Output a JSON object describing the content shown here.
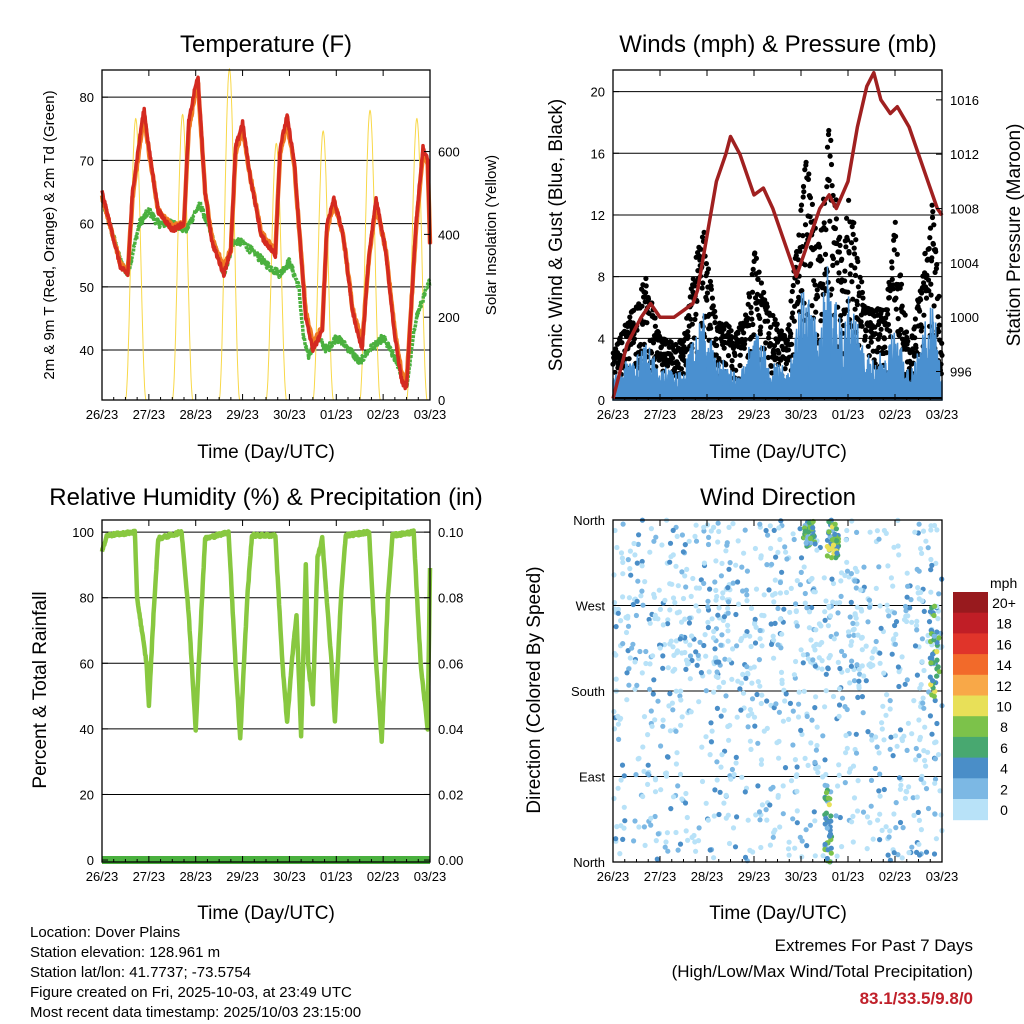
{
  "x_ticks": [
    "26/23",
    "27/23",
    "28/23",
    "29/23",
    "30/23",
    "01/23",
    "02/23",
    "03/23"
  ],
  "x_label": "Time (Day/UTC)",
  "chart_data": [
    {
      "id": "temperature",
      "type": "line",
      "title": "Temperature (F)",
      "ylabel": "2m & 9m T (Red, Orange) & 2m Td (Green)",
      "ylabel_right": "Solar Insolation (Yellow)",
      "xlim": [
        0,
        7
      ],
      "ylim": [
        32.1,
        84.3
      ],
      "ylim_right": [
        0,
        797
      ],
      "y_ticks": [
        40,
        50,
        60,
        70,
        80
      ],
      "y_ticks_right": [
        0,
        200,
        400,
        600
      ],
      "grid": true,
      "series": [
        {
          "name": "2m T",
          "color": "#d42a20",
          "points": [
            [
              0,
              65
            ],
            [
              0.4,
              53
            ],
            [
              0.55,
              52
            ],
            [
              0.65,
              65
            ],
            [
              0.85,
              76
            ],
            [
              0.9,
              78
            ],
            [
              1.0,
              72
            ],
            [
              1.2,
              62
            ],
            [
              1.5,
              59
            ],
            [
              1.75,
              60
            ],
            [
              1.85,
              76
            ],
            [
              2.0,
              82
            ],
            [
              2.05,
              83
            ],
            [
              2.2,
              65
            ],
            [
              2.35,
              57
            ],
            [
              2.6,
              52
            ],
            [
              2.75,
              56
            ],
            [
              2.85,
              72
            ],
            [
              3.0,
              76
            ],
            [
              3.15,
              68
            ],
            [
              3.4,
              58
            ],
            [
              3.7,
              55
            ],
            [
              3.8,
              72
            ],
            [
              3.95,
              77
            ],
            [
              4.1,
              70
            ],
            [
              4.25,
              55
            ],
            [
              4.35,
              45
            ],
            [
              4.5,
              40
            ],
            [
              4.7,
              43
            ],
            [
              4.8,
              60
            ],
            [
              4.95,
              64
            ],
            [
              5.15,
              58
            ],
            [
              5.35,
              46
            ],
            [
              5.55,
              40
            ],
            [
              5.7,
              55
            ],
            [
              5.85,
              64
            ],
            [
              6.05,
              56
            ],
            [
              6.25,
              42
            ],
            [
              6.4,
              35
            ],
            [
              6.5,
              34
            ],
            [
              6.7,
              60
            ],
            [
              6.85,
              72
            ],
            [
              6.95,
              70
            ],
            [
              7.0,
              57
            ]
          ]
        },
        {
          "name": "9m T",
          "color": "#f07a22",
          "points": [
            [
              0,
              64.5
            ],
            [
              0.4,
              53.5
            ],
            [
              0.55,
              52.5
            ],
            [
              0.65,
              64
            ],
            [
              0.85,
              75
            ],
            [
              0.9,
              77
            ],
            [
              1.0,
              71.5
            ],
            [
              1.2,
              62
            ],
            [
              1.5,
              59.5
            ],
            [
              1.75,
              60
            ],
            [
              1.85,
              75
            ],
            [
              2.0,
              81
            ],
            [
              2.05,
              82
            ],
            [
              2.2,
              65
            ],
            [
              2.35,
              57.5
            ],
            [
              2.6,
              53
            ],
            [
              2.75,
              56
            ],
            [
              2.85,
              71
            ],
            [
              3.0,
              75
            ],
            [
              3.15,
              68
            ],
            [
              3.4,
              58.5
            ],
            [
              3.7,
              55.5
            ],
            [
              3.8,
              71
            ],
            [
              3.95,
              76
            ],
            [
              4.1,
              69.5
            ],
            [
              4.25,
              55
            ],
            [
              4.35,
              46
            ],
            [
              4.5,
              41
            ],
            [
              4.7,
              43.5
            ],
            [
              4.8,
              59
            ],
            [
              4.95,
              63.5
            ],
            [
              5.15,
              58
            ],
            [
              5.35,
              46.5
            ],
            [
              5.55,
              41
            ],
            [
              5.7,
              55
            ],
            [
              5.85,
              63
            ],
            [
              6.05,
              56
            ],
            [
              6.25,
              43
            ],
            [
              6.4,
              36
            ],
            [
              6.5,
              35
            ],
            [
              6.7,
              59
            ],
            [
              6.85,
              71
            ],
            [
              6.95,
              69.5
            ],
            [
              7.0,
              57
            ]
          ]
        },
        {
          "name": "2m Td",
          "color": "#4ab03e",
          "points": [
            [
              0,
              64
            ],
            [
              0.4,
              54
            ],
            [
              0.55,
              52
            ],
            [
              0.8,
              60
            ],
            [
              1.0,
              62
            ],
            [
              1.2,
              60
            ],
            [
              1.5,
              60
            ],
            [
              1.8,
              59
            ],
            [
              2.0,
              62
            ],
            [
              2.1,
              63
            ],
            [
              2.3,
              59
            ],
            [
              2.6,
              52
            ],
            [
              2.8,
              57
            ],
            [
              3.0,
              57
            ],
            [
              3.3,
              55
            ],
            [
              3.6,
              53
            ],
            [
              3.8,
              52
            ],
            [
              4.0,
              54
            ],
            [
              4.2,
              50
            ],
            [
              4.3,
              42
            ],
            [
              4.4,
              39
            ],
            [
              4.6,
              42
            ],
            [
              4.8,
              40
            ],
            [
              5.0,
              42
            ],
            [
              5.3,
              40
            ],
            [
              5.5,
              38
            ],
            [
              5.7,
              40
            ],
            [
              6.0,
              42
            ],
            [
              6.3,
              38
            ],
            [
              6.5,
              34
            ],
            [
              6.7,
              45
            ],
            [
              6.85,
              48
            ],
            [
              7.0,
              51
            ]
          ]
        },
        {
          "name": "Solar Insolation",
          "color": "#f8d848",
          "axis": "right",
          "daily_noon_day_fraction": 0.72,
          "daily_peaks": [
            680,
            690,
            800,
            620,
            650,
            700,
            680
          ]
        }
      ]
    },
    {
      "id": "winds",
      "type": "line",
      "title": "Winds (mph) & Pressure (mb)",
      "ylabel": "Sonic Wind & Gust (Blue, Black)",
      "ylabel_right": "Station Pressure (Maroon)",
      "xlim": [
        0,
        7
      ],
      "ylim": [
        0,
        21.4
      ],
      "ylim_right": [
        993.9,
        1018.2
      ],
      "y_ticks": [
        0,
        4,
        8,
        12,
        16,
        20
      ],
      "y_ticks_right": [
        996,
        1000,
        1004,
        1008,
        1012,
        1016
      ],
      "grid": true,
      "series": [
        {
          "name": "Gust",
          "color": "#000000",
          "type": "scatter",
          "envelope": [
            [
              0,
              3
            ],
            [
              0.7,
              8
            ],
            [
              1.0,
              4
            ],
            [
              1.5,
              4
            ],
            [
              1.9,
              12
            ],
            [
              2.2,
              5
            ],
            [
              2.8,
              5
            ],
            [
              3.0,
              10
            ],
            [
              3.3,
              6
            ],
            [
              3.7,
              4
            ],
            [
              4.1,
              16
            ],
            [
              4.4,
              10
            ],
            [
              4.6,
              18
            ],
            [
              4.9,
              8
            ],
            [
              5.0,
              14
            ],
            [
              5.4,
              6
            ],
            [
              5.8,
              6
            ],
            [
              6.0,
              12
            ],
            [
              6.3,
              3
            ],
            [
              6.8,
              13
            ],
            [
              7.0,
              4
            ]
          ]
        },
        {
          "name": "Sonic Wind",
          "color": "#4a90d0",
          "ratio_of_gust": 0.55
        },
        {
          "name": "Station Pressure",
          "color": "#a02020",
          "axis": "right",
          "points": [
            [
              0,
              994
            ],
            [
              0.3,
              998
            ],
            [
              0.6,
              1000
            ],
            [
              0.8,
              1001
            ],
            [
              1.0,
              1000
            ],
            [
              1.3,
              1000
            ],
            [
              1.5,
              1000.5
            ],
            [
              1.7,
              1001
            ],
            [
              1.8,
              1002
            ],
            [
              2.0,
              1006
            ],
            [
              2.2,
              1010
            ],
            [
              2.4,
              1012
            ],
            [
              2.5,
              1013.3
            ],
            [
              2.7,
              1012
            ],
            [
              3.0,
              1009
            ],
            [
              3.2,
              1009.5
            ],
            [
              3.4,
              1008
            ],
            [
              3.6,
              1006
            ],
            [
              3.8,
              1004
            ],
            [
              3.9,
              1003
            ],
            [
              4.1,
              1005
            ],
            [
              4.4,
              1008
            ],
            [
              4.6,
              1009
            ],
            [
              4.75,
              1008
            ],
            [
              5.0,
              1010
            ],
            [
              5.2,
              1014
            ],
            [
              5.4,
              1017
            ],
            [
              5.55,
              1018
            ],
            [
              5.7,
              1016
            ],
            [
              5.9,
              1015
            ],
            [
              6.05,
              1015.5
            ],
            [
              6.3,
              1014
            ],
            [
              6.5,
              1012
            ],
            [
              6.7,
              1010
            ],
            [
              6.9,
              1008
            ],
            [
              7.0,
              1007.5
            ]
          ]
        }
      ]
    },
    {
      "id": "humidity",
      "type": "line",
      "title": "Relative Humidity (%) & Precipitation (in)",
      "ylabel": "Percent & Total Rainfall",
      "xlim": [
        0,
        7
      ],
      "ylim": [
        -0.6,
        103.7
      ],
      "ylim_right": [
        -0.0006,
        0.1037
      ],
      "y_ticks": [
        0,
        20,
        40,
        60,
        80,
        100
      ],
      "y_ticks_right": [
        "0.00",
        "0.02",
        "0.04",
        "0.06",
        "0.08",
        "0.10"
      ],
      "grid": true,
      "series": [
        {
          "name": "Relative Humidity",
          "color": "#88c840",
          "points": [
            [
              0,
              94
            ],
            [
              0.1,
              99
            ],
            [
              0.7,
              100
            ],
            [
              0.75,
              80
            ],
            [
              0.95,
              60
            ],
            [
              1.0,
              47
            ],
            [
              1.1,
              75
            ],
            [
              1.2,
              98
            ],
            [
              1.7,
              100
            ],
            [
              1.85,
              75
            ],
            [
              2.0,
              40
            ],
            [
              2.1,
              70
            ],
            [
              2.2,
              98
            ],
            [
              2.7,
              100
            ],
            [
              2.85,
              60
            ],
            [
              2.95,
              37
            ],
            [
              3.1,
              80
            ],
            [
              3.2,
              99
            ],
            [
              3.7,
              99
            ],
            [
              3.85,
              60
            ],
            [
              3.95,
              42
            ],
            [
              4.05,
              60
            ],
            [
              4.15,
              75
            ],
            [
              4.25,
              38
            ],
            [
              4.35,
              90
            ],
            [
              4.4,
              60
            ],
            [
              4.5,
              48
            ],
            [
              4.6,
              92
            ],
            [
              4.7,
              98
            ],
            [
              4.9,
              60
            ],
            [
              4.97,
              42
            ],
            [
              5.1,
              80
            ],
            [
              5.2,
              99
            ],
            [
              5.7,
              100
            ],
            [
              5.85,
              60
            ],
            [
              5.97,
              36
            ],
            [
              6.1,
              80
            ],
            [
              6.2,
              99
            ],
            [
              6.65,
              100
            ],
            [
              6.8,
              60
            ],
            [
              6.95,
              40
            ],
            [
              7.0,
              89
            ]
          ]
        },
        {
          "name": "Total Precipitation",
          "color": "#4ab03e",
          "axis": "right",
          "points": [
            [
              0,
              0
            ],
            [
              7,
              0
            ]
          ]
        }
      ]
    },
    {
      "id": "wind_direction",
      "type": "scatter",
      "title": "Wind Direction",
      "ylabel": "Direction (Colored By Speed)",
      "xlim": [
        0,
        7
      ],
      "ylim": [
        0,
        360
      ],
      "y_ticks": [
        {
          "value": 360,
          "label": "North"
        },
        {
          "value": 270,
          "label": "West"
        },
        {
          "value": 180,
          "label": "South"
        },
        {
          "value": 90,
          "label": "East"
        },
        {
          "value": 0,
          "label": "North"
        }
      ],
      "grid": true,
      "colorbar": {
        "title": "mph",
        "bins": [
          {
            "label": "20+",
            "color": "#981a1e"
          },
          {
            "label": "18",
            "color": "#c01e26"
          },
          {
            "label": "16",
            "color": "#e0342a"
          },
          {
            "label": "14",
            "color": "#f26a2a"
          },
          {
            "label": "12",
            "color": "#f8a848"
          },
          {
            "label": "10",
            "color": "#e8e058"
          },
          {
            "label": "8",
            "color": "#7cc24a"
          },
          {
            "label": "6",
            "color": "#48a870"
          },
          {
            "label": "4",
            "color": "#4a8ec8"
          },
          {
            "label": "2",
            "color": "#7cb8e4"
          },
          {
            "label": "0",
            "color": "#b8e2f8"
          }
        ]
      }
    }
  ],
  "info": {
    "location": "Location: Dover Plains",
    "elevation": "Station elevation: 128.961 m",
    "latlon": "Station lat/lon: 41.7737; -73.5754",
    "created": "Figure created on Fri, 2025-10-03, at 23:49 UTC",
    "recent": "Most recent data timestamp: 2025/10/03 23:15:00"
  },
  "extremes": {
    "title": "Extremes For Past 7 Days",
    "subtitle": "(High/Low/Max Wind/Total Precipitation)",
    "values": "83.1/33.5/9.8/0"
  }
}
